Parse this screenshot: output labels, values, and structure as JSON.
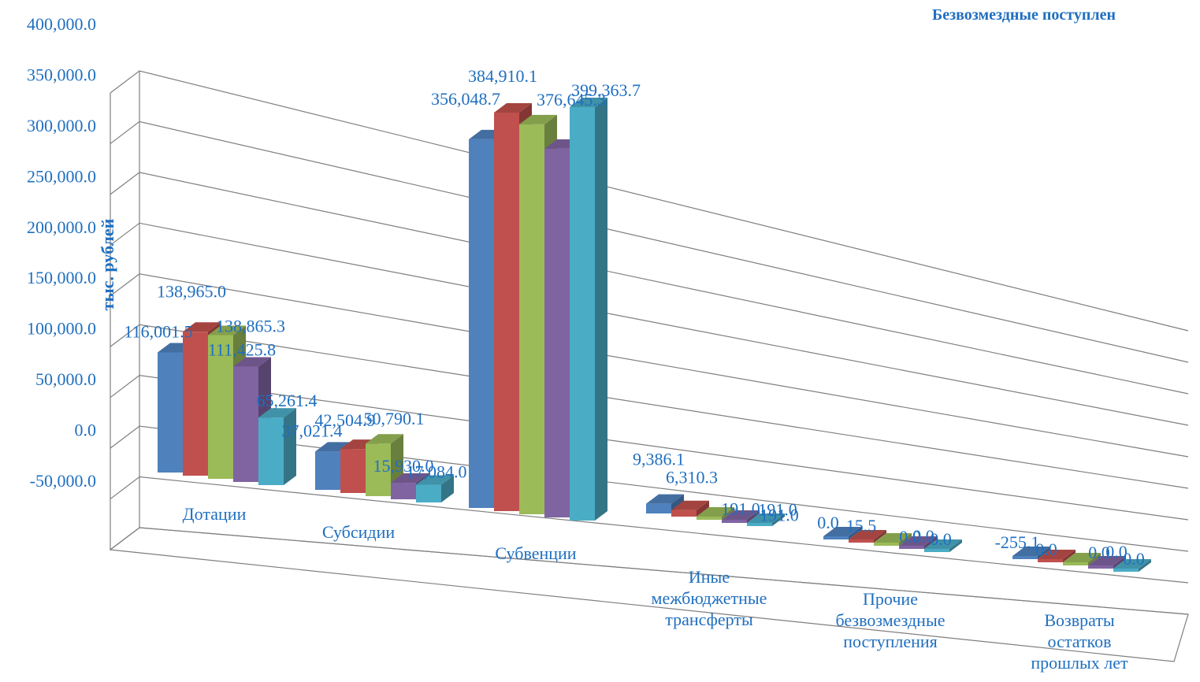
{
  "chart_data": {
    "type": "bar",
    "title": "Безвозмездные поступлен",
    "ylabel": "тыс. рублей",
    "xlabel": "",
    "ylim": [
      -50000,
      400000
    ],
    "yticks": [
      "400,000.0",
      "350,000.0",
      "300,000.0",
      "250,000.0",
      "200,000.0",
      "150,000.0",
      "100,000.0",
      "50,000.0",
      "0.0",
      "-50,000.0"
    ],
    "categories": [
      [
        "Дотации"
      ],
      [
        "Субсидии"
      ],
      [
        "Субвенции"
      ],
      [
        "Иные",
        "межбюджетные",
        "трансферты"
      ],
      [
        "Прочие",
        "безвозмездные",
        "поступления"
      ],
      [
        "Возвраты",
        "остатков",
        "прошлых лет"
      ]
    ],
    "series": [
      {
        "color": "#4f81bd",
        "values": [
          116001.5,
          37021.4,
          356048.7,
          9386.1,
          0.0,
          -255.1
        ]
      },
      {
        "color": "#c0504d",
        "values": [
          138965.0,
          42504.9,
          384910.1,
          6310.3,
          15.5,
          0.0
        ]
      },
      {
        "color": "#9bbb59",
        "values": [
          138865.3,
          50790.1,
          376645.3,
          191.0,
          0.0,
          0.0
        ]
      },
      {
        "color": "#8064a2",
        "values": [
          111425.8,
          15930.0,
          356048.7,
          191.0,
          0.0,
          0.0
        ]
      },
      {
        "color": "#4bacc6",
        "values": [
          65261.4,
          17084.0,
          399363.7,
          191.0,
          0.0,
          0.0
        ]
      }
    ],
    "data_labels": [
      [
        "116,001.5",
        "37,021.4",
        "356,048.7",
        "9,386.1",
        "0.0",
        "-255.1"
      ],
      [
        "138,965.0",
        "42,504.9",
        "384,910.1",
        "6,310.3",
        "15.5",
        "0.0"
      ],
      [
        "138,865.3",
        "50,790.1",
        "376,645.3",
        "191.0",
        "0.0",
        "0.0"
      ],
      [
        "111,425.8",
        "15,930.0",
        "",
        "191.0",
        "0.0",
        "0.0"
      ],
      [
        "65,261.4",
        "17,084.0",
        "399,363.7",
        "191.0",
        "0.0",
        "0.0"
      ]
    ],
    "grid": true,
    "legend": "none"
  }
}
